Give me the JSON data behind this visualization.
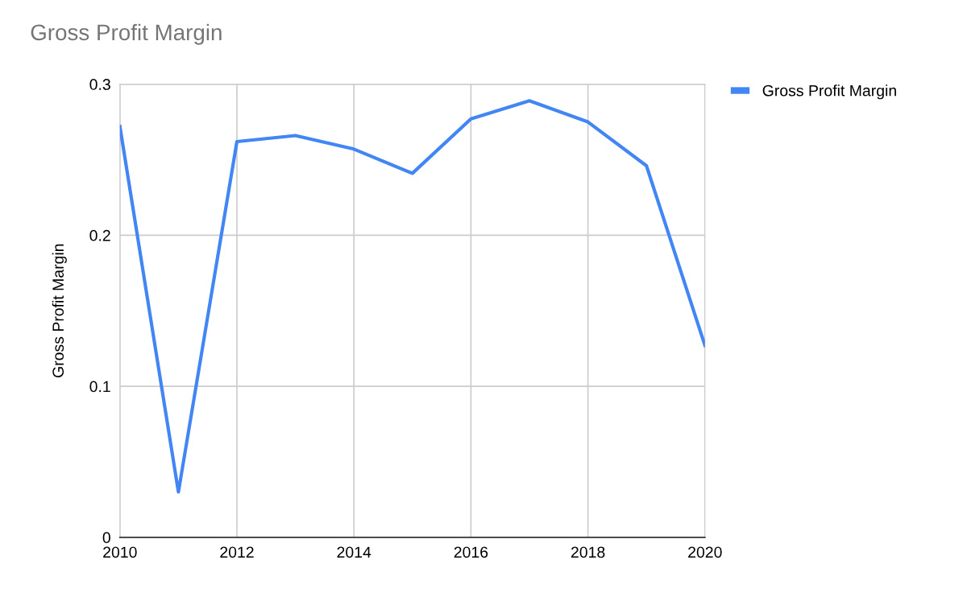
{
  "chart_data": {
    "type": "line",
    "title": "Gross Profit Margin",
    "ylabel": "Gross Profit Margin",
    "x": [
      2010,
      2011,
      2012,
      2013,
      2014,
      2015,
      2016,
      2017,
      2018,
      2019,
      2020
    ],
    "series": [
      {
        "name": "Gross Profit Margin",
        "color": "#4285f4",
        "values": [
          0.272,
          0.03,
          0.262,
          0.266,
          0.257,
          0.241,
          0.277,
          0.289,
          0.275,
          0.246,
          0.127
        ]
      }
    ],
    "xlim": [
      2010,
      2020
    ],
    "xticks": [
      2010,
      2012,
      2014,
      2016,
      2018,
      2020
    ],
    "ylim": [
      0,
      0.3
    ],
    "yticks": [
      {
        "value": 0,
        "label": "0"
      },
      0.1,
      0.2,
      0.3
    ],
    "grid": true,
    "legend": "top right",
    "marker": "none",
    "line_style": "solid"
  }
}
